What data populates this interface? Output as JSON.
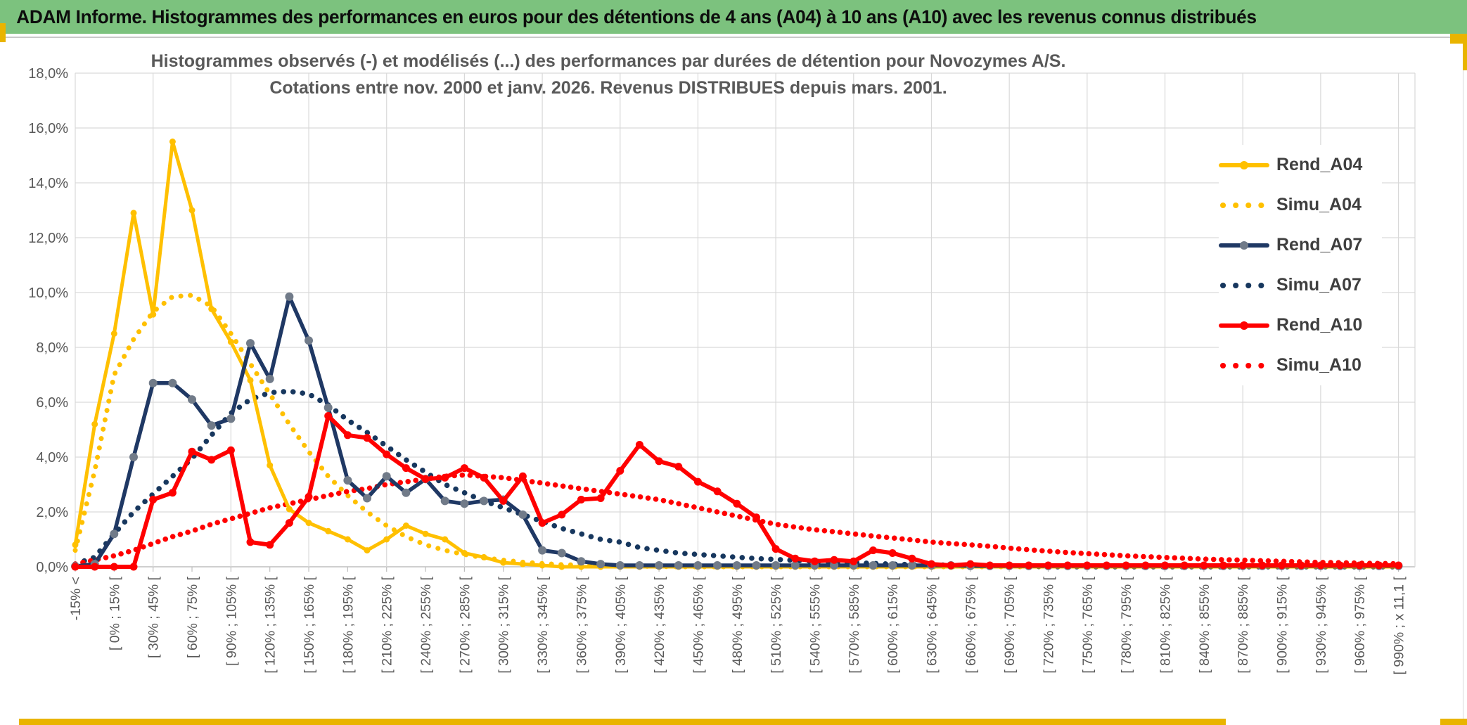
{
  "header": {
    "title": "ADAM Informe. Histogrammes des performances en euros pour des détentions de 4 ans (A04) à 10 ans (A10) avec les revenus connus distribués"
  },
  "colors": {
    "header_green": "#7CC27E",
    "accent_gold": "#E9B400",
    "series_gold": "#FFC000",
    "series_navy": "#1F3864",
    "series_red": "#FF0000",
    "grid": "#D9D9D9",
    "axis_text": "#595959"
  },
  "chart_data": {
    "type": "line",
    "title": "Histogrammes observés (-) et modélisés (...) des performances par durées de détention pour Novozymes A/S.",
    "subtitle": "Cotations entre nov. 2000 et janv. 2026. Revenus DISTRIBUES depuis mars. 2001.",
    "ylabel": "",
    "xlabel": "",
    "ylim": [
      0,
      18
    ],
    "grid": true,
    "legend_position": "right",
    "y_tick_labels": [
      "0,0%",
      "2,0%",
      "4,0%",
      "6,0%",
      "8,0%",
      "10,0%",
      "12,0%",
      "14,0%",
      "16,0%",
      "18,0%"
    ],
    "x_bins_total": 69,
    "x_bin_width_pct": 15,
    "x_tick_labels": [
      "-15% <",
      "[ 0% ; 15% [",
      "[ 30% ; 45% [",
      "[ 60% ; 75% [",
      "[ 90% ; 105% [",
      "[ 120% ; 135% [",
      "[ 150% ; 165% [",
      "[ 180% ; 195% [",
      "[ 210% ; 225% [",
      "[ 240% ; 255% [",
      "[ 270% ; 285% [",
      "[ 300% ; 315% [",
      "[ 330% ; 345% [",
      "[ 360% ; 375% [",
      "[ 390% ; 405% [",
      "[ 420% ; 435% [",
      "[ 450% ; 465% [",
      "[ 480% ; 495% [",
      "[ 510% ; 525% [",
      "[ 540% ; 555% [",
      "[ 570% ; 585% [",
      "[ 600% ; 615% [",
      "[ 630% ; 645% [",
      "[ 660% ; 675% [",
      "[ 690% ; 705% [",
      "[ 720% ; 735% [",
      "[ 750% ; 765% [",
      "[ 780% ; 795% [",
      "[ 810% ; 825% [",
      "[ 840% ; 855% [",
      "[ 870% ; 885% [",
      "[ 900% ; 915% [",
      "[ 930% ; 945% [",
      "[ 960% ; 975% [",
      "[ 990% ; x 11,1 ["
    ],
    "series": [
      {
        "name": "Rend_A04",
        "color": "#FFC000",
        "style": "solid",
        "marker_color": "#FFC000",
        "values": [
          0.8,
          5.2,
          8.5,
          12.9,
          9.2,
          15.5,
          13.0,
          9.4,
          8.2,
          6.8,
          3.7,
          2.1,
          1.6,
          1.3,
          1.0,
          0.6,
          1.0,
          1.5,
          1.2,
          1.0,
          0.5,
          0.35,
          0.15,
          0.1,
          0.05,
          0,
          0,
          0,
          0,
          0,
          0,
          0,
          0,
          0,
          0,
          0,
          0,
          0,
          0,
          0,
          0,
          0,
          0,
          0,
          0,
          0,
          0,
          0,
          0,
          0,
          0,
          0,
          0,
          0,
          0,
          0,
          0,
          0,
          0,
          0,
          0,
          0,
          0,
          0,
          0,
          0,
          0,
          0,
          0
        ]
      },
      {
        "name": "Simu_A04",
        "color": "#FFC000",
        "style": "dotted",
        "values": [
          0.6,
          3.5,
          7.0,
          8.3,
          9.3,
          9.85,
          9.9,
          9.5,
          8.5,
          7.4,
          6.3,
          5.2,
          4.2,
          3.3,
          2.6,
          2.0,
          1.5,
          1.1,
          0.8,
          0.6,
          0.45,
          0.33,
          0.24,
          0.17,
          0.12,
          0.08,
          0.06,
          0.04,
          0.03,
          0.02,
          0.01,
          0,
          0,
          0,
          0,
          0,
          0,
          0,
          0,
          0,
          0,
          0,
          0,
          0,
          0,
          0,
          0,
          0,
          0,
          0,
          0,
          0,
          0,
          0,
          0,
          0,
          0,
          0,
          0,
          0,
          0,
          0,
          0,
          0,
          0,
          0,
          0,
          0,
          0
        ]
      },
      {
        "name": "Rend_A07",
        "color": "#1F3864",
        "style": "solid",
        "marker_color": "#717B89",
        "values": [
          0.02,
          0.1,
          1.2,
          4.0,
          6.7,
          6.7,
          6.1,
          5.15,
          5.4,
          8.15,
          6.85,
          9.85,
          8.25,
          5.8,
          3.15,
          2.5,
          3.3,
          2.7,
          3.2,
          2.4,
          2.3,
          2.4,
          2.45,
          1.9,
          0.6,
          0.5,
          0.2,
          0.1,
          0.05,
          0.05,
          0.05,
          0.05,
          0.05,
          0.05,
          0.05,
          0.05,
          0.05,
          0.05,
          0.05,
          0.05,
          0.05,
          0.05,
          0.05,
          0.05,
          0.05,
          0.05,
          0.03,
          0.03,
          0.03,
          0.03,
          0.03,
          0.03,
          0.03,
          0.03,
          0.03,
          0.03,
          0.03,
          0.03,
          0.03,
          0.03,
          0.03,
          0.03,
          0.03,
          0.03,
          0.03,
          0.03,
          0.03,
          0.03,
          0.03
        ]
      },
      {
        "name": "Simu_A07",
        "color": "#17375E",
        "style": "dotted",
        "values": [
          0.1,
          0.35,
          1.2,
          2.0,
          2.65,
          3.3,
          3.95,
          4.8,
          5.6,
          6.1,
          6.35,
          6.4,
          6.3,
          5.9,
          5.35,
          4.9,
          4.4,
          3.9,
          3.45,
          3.0,
          2.7,
          2.4,
          2.15,
          1.9,
          1.65,
          1.4,
          1.2,
          1.0,
          0.9,
          0.7,
          0.6,
          0.5,
          0.45,
          0.4,
          0.35,
          0.3,
          0.27,
          0.23,
          0.2,
          0.17,
          0.15,
          0.12,
          0.1,
          0.08,
          0.07,
          0.06,
          0.05,
          0.04,
          0.03,
          0.02,
          0,
          0,
          0,
          0,
          0,
          0,
          0,
          0,
          0,
          0,
          0,
          0,
          0,
          0,
          0,
          0,
          0,
          0,
          0
        ]
      },
      {
        "name": "Rend_A10",
        "color": "#FF0000",
        "style": "solid",
        "marker_color": "#FF0000",
        "values": [
          0,
          0,
          0,
          0,
          2.45,
          2.7,
          4.2,
          3.9,
          4.25,
          0.9,
          0.8,
          1.6,
          2.55,
          5.5,
          4.8,
          4.7,
          4.1,
          3.6,
          3.2,
          3.25,
          3.6,
          3.25,
          2.4,
          3.3,
          1.6,
          1.9,
          2.45,
          2.5,
          3.5,
          4.45,
          3.85,
          3.65,
          3.1,
          2.75,
          2.3,
          1.8,
          0.65,
          0.3,
          0.2,
          0.25,
          0.2,
          0.6,
          0.5,
          0.3,
          0.1,
          0.05,
          0.1,
          0.05,
          0.05,
          0.05,
          0.05,
          0.05,
          0.05,
          0.05,
          0.05,
          0.05,
          0.05,
          0.05,
          0.05,
          0.05,
          0.05,
          0.05,
          0.05,
          0.05,
          0.05,
          0.05,
          0.05,
          0.05,
          0.05
        ]
      },
      {
        "name": "Simu_A10",
        "color": "#FF0000",
        "style": "dotted",
        "values": [
          0.1,
          0.25,
          0.4,
          0.6,
          0.85,
          1.1,
          1.3,
          1.55,
          1.75,
          1.95,
          2.15,
          2.3,
          2.45,
          2.6,
          2.75,
          2.85,
          3.0,
          3.1,
          3.2,
          3.3,
          3.35,
          3.3,
          3.25,
          3.15,
          3.05,
          2.95,
          2.85,
          2.75,
          2.65,
          2.55,
          2.45,
          2.3,
          2.15,
          2.0,
          1.85,
          1.7,
          1.55,
          1.45,
          1.35,
          1.28,
          1.2,
          1.12,
          1.05,
          0.98,
          0.9,
          0.85,
          0.8,
          0.75,
          0.68,
          0.62,
          0.57,
          0.52,
          0.48,
          0.44,
          0.4,
          0.37,
          0.34,
          0.31,
          0.28,
          0.26,
          0.24,
          0.22,
          0.2,
          0.18,
          0.16,
          0.15,
          0.13,
          0.12,
          0.11
        ]
      }
    ]
  }
}
